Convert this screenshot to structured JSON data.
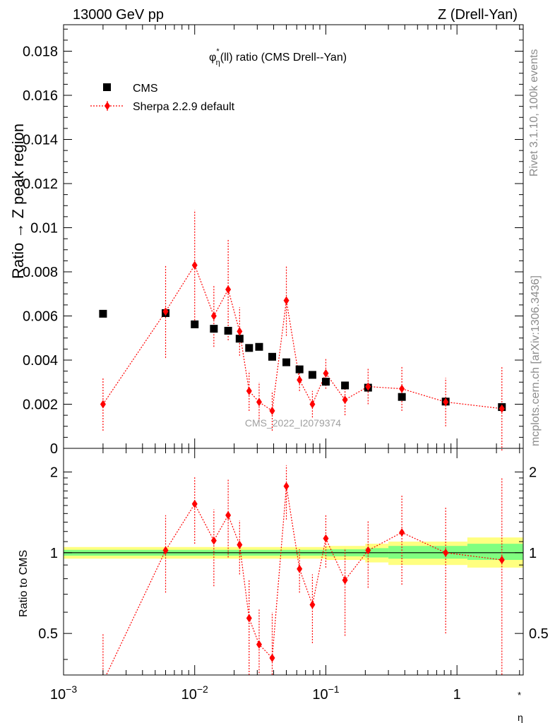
{
  "header": {
    "left": "13000 GeV pp",
    "right": "Z (Drell-Yan)"
  },
  "side_labels": {
    "rivet": "Rivet 3.1.10,  100k events",
    "mcplots": "mcplots.cern.ch [arXiv:1306.3436]"
  },
  "watermark": "CMS_2022_I2079374",
  "colors": {
    "data": "#000000",
    "mc": "#ff0000",
    "band_inner": "#80ff80",
    "band_outer": "#ffff80"
  },
  "chart_data": [
    {
      "type": "scatter",
      "title": {
        "main": "φ",
        "sup": "*",
        "sub": "η",
        "rest": "(ll) ratio (CMS Drell--Yan)"
      },
      "xlabel": {
        "main": "φ",
        "sup": "*",
        "sub": "η"
      },
      "ylabel": "Ratio → Z peak region",
      "x_scale": "log",
      "xlim": [
        0.001,
        3.2
      ],
      "ylim": [
        0,
        0.0192
      ],
      "yticks": [
        {
          "v": 0,
          "label": "0"
        },
        {
          "v": 0.002,
          "label": "0.002"
        },
        {
          "v": 0.004,
          "label": "0.004"
        },
        {
          "v": 0.006,
          "label": "0.006"
        },
        {
          "v": 0.008,
          "label": "0.008"
        },
        {
          "v": 0.01,
          "label": "0.01"
        },
        {
          "v": 0.012,
          "label": "0.012"
        },
        {
          "v": 0.014,
          "label": "0.014"
        },
        {
          "v": 0.016,
          "label": "0.016"
        },
        {
          "v": 0.018,
          "label": "0.018"
        }
      ],
      "legend_position": "top-left",
      "series": [
        {
          "name": "CMS",
          "marker": "square",
          "x": [
            0.002,
            0.006,
            0.01,
            0.014,
            0.018,
            0.022,
            0.026,
            0.031,
            0.039,
            0.05,
            0.063,
            0.079,
            0.1,
            0.14,
            0.21,
            0.38,
            0.82,
            2.2
          ],
          "y": [
            0.0061,
            0.00613,
            0.00562,
            0.00542,
            0.00533,
            0.00497,
            0.00455,
            0.0046,
            0.00415,
            0.0039,
            0.00358,
            0.00333,
            0.00302,
            0.00285,
            0.00275,
            0.00233,
            0.00212,
            0.00187
          ]
        },
        {
          "name": "Sherpa 2.2.9 default",
          "marker": "diamond",
          "x": [
            0.002,
            0.006,
            0.01,
            0.014,
            0.018,
            0.022,
            0.026,
            0.031,
            0.039,
            0.05,
            0.063,
            0.079,
            0.1,
            0.14,
            0.21,
            0.38,
            0.82,
            2.2
          ],
          "y": [
            0.002,
            0.0062,
            0.0083,
            0.006,
            0.0072,
            0.0053,
            0.0026,
            0.0021,
            0.0017,
            0.0067,
            0.0031,
            0.002,
            0.0034,
            0.0022,
            0.0028,
            0.0027,
            0.0021,
            0.0018
          ],
          "yerr": [
            0.0012,
            0.0021,
            0.0025,
            0.0014,
            0.0023,
            0.0011,
            0.0009,
            0.0009,
            0.0009,
            0.0016,
            0.0005,
            0.0006,
            0.0007,
            0.0007,
            0.0008,
            0.001,
            0.0011,
            0.0019
          ]
        }
      ]
    },
    {
      "type": "scatter",
      "ylabel": "Ratio to CMS",
      "x_scale": "log",
      "y_scale": "log",
      "xlim": [
        0.001,
        3.2
      ],
      "ylim": [
        0.35,
        2.45
      ],
      "xticks": [
        {
          "v": 0.001,
          "base": "10",
          "exp": "−3"
        },
        {
          "v": 0.01,
          "base": "10",
          "exp": "−2"
        },
        {
          "v": 0.1,
          "base": "10",
          "exp": "−1"
        },
        {
          "v": 1,
          "base": "1",
          "exp": ""
        }
      ],
      "yticks": [
        {
          "v": 0.5,
          "label": "0.5"
        },
        {
          "v": 1,
          "label": "1"
        },
        {
          "v": 2,
          "label": "2"
        }
      ],
      "reference_line": 1,
      "band_inner": [
        {
          "x0": 0.001,
          "x1": 0.1,
          "lo": 0.975,
          "hi": 1.025
        },
        {
          "x0": 0.1,
          "x1": 0.2,
          "lo": 0.97,
          "hi": 1.03
        },
        {
          "x0": 0.2,
          "x1": 0.3,
          "lo": 0.96,
          "hi": 1.04
        },
        {
          "x0": 0.3,
          "x1": 1.2,
          "lo": 0.95,
          "hi": 1.06
        },
        {
          "x0": 1.2,
          "x1": 3.2,
          "lo": 0.94,
          "hi": 1.08
        }
      ],
      "band_outer": [
        {
          "x0": 0.001,
          "x1": 0.1,
          "lo": 0.95,
          "hi": 1.05
        },
        {
          "x0": 0.1,
          "x1": 0.2,
          "lo": 0.94,
          "hi": 1.06
        },
        {
          "x0": 0.2,
          "x1": 0.3,
          "lo": 0.92,
          "hi": 1.08
        },
        {
          "x0": 0.3,
          "x1": 1.2,
          "lo": 0.9,
          "hi": 1.1
        },
        {
          "x0": 1.2,
          "x1": 3.2,
          "lo": 0.88,
          "hi": 1.14
        }
      ],
      "series": [
        {
          "name": "Sherpa 2.2.9 default",
          "x": [
            0.002,
            0.006,
            0.01,
            0.014,
            0.018,
            0.022,
            0.026,
            0.031,
            0.039,
            0.05,
            0.063,
            0.079,
            0.1,
            0.14,
            0.21,
            0.38,
            0.82,
            2.2
          ],
          "y": [
            0.33,
            1.02,
            1.52,
            1.11,
            1.38,
            1.07,
            0.57,
            0.455,
            0.405,
            1.77,
            0.87,
            0.64,
            1.13,
            0.79,
            1.02,
            1.19,
            1.0,
            0.94
          ],
          "ylo": [
            0.2,
            0.71,
            1.08,
            0.75,
            0.96,
            0.83,
            0.35,
            0.3,
            0.25,
            1.33,
            0.71,
            0.46,
            0.88,
            0.49,
            0.74,
            0.76,
            0.5,
            0.25
          ],
          "yhi": [
            0.5,
            1.38,
            1.92,
            1.45,
            1.88,
            1.32,
            0.79,
            0.62,
            0.6,
            2.12,
            1.03,
            0.83,
            1.38,
            1.04,
            1.32,
            1.65,
            1.48,
            1.9
          ]
        }
      ]
    }
  ]
}
